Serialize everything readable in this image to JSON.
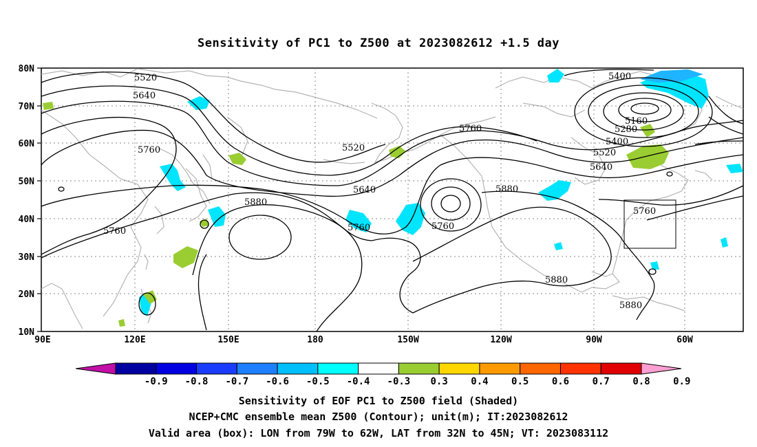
{
  "title": "Sensitivity of PC1 to Z500 at 2023082612 +1.5 day",
  "axes": {
    "lat_ticks": [
      "80N",
      "70N",
      "60N",
      "50N",
      "40N",
      "30N",
      "20N",
      "10N"
    ],
    "lon_ticks": [
      "90E",
      "120E",
      "150E",
      "180",
      "150W",
      "120W",
      "90W",
      "60W"
    ]
  },
  "contour_labels": [
    "5520",
    "5640",
    "5760",
    "5760",
    "5520",
    "5640",
    "5880",
    "5760",
    "5760",
    "5760",
    "5880",
    "5400",
    "5160",
    "5280",
    "5400",
    "5520",
    "5640",
    "5760",
    "5880",
    "5880"
  ],
  "colorbar": {
    "labels": [
      "-0.9",
      "-0.8",
      "-0.7",
      "-0.6",
      "-0.5",
      "-0.4",
      "-0.3",
      "0.3",
      "0.4",
      "0.5",
      "0.6",
      "0.7",
      "0.8",
      "0.9"
    ],
    "colors": [
      "#c10fa8",
      "#0000a0",
      "#0000e0",
      "#1a3cff",
      "#1e7fff",
      "#00bfff",
      "#00ffff",
      "#ffffff",
      "#9acd32",
      "#ffd700",
      "#ff9a00",
      "#ff6600",
      "#ff3300",
      "#e00000",
      "#ff9ed2"
    ]
  },
  "footer": {
    "line1": "Sensitivity of EOF PC1 to Z500 field (Shaded)",
    "line2": "NCEP+CMC ensemble mean Z500 (Contour); unit(m); IT:2023082612",
    "line3": "Valid area (box): LON from 79W to 62W, LAT from 32N to 45N; VT: 2023083112"
  },
  "shading_colors": {
    "positive": "#9acd32",
    "negative": "#00e5ff",
    "coast": "#b4b4b4",
    "contour": "#000000"
  }
}
